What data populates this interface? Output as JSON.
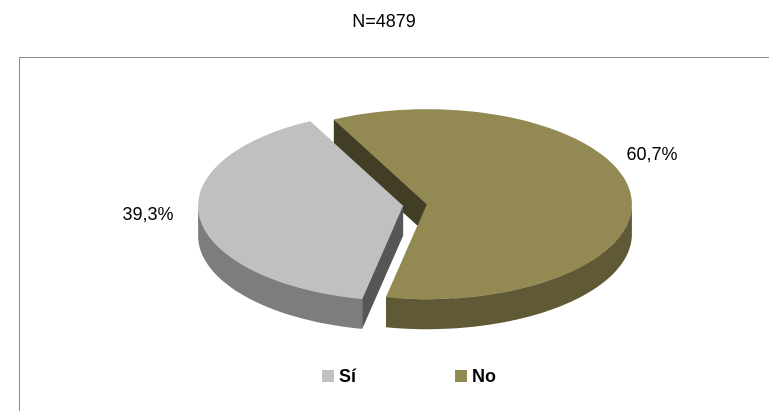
{
  "chart_data": {
    "type": "pie",
    "title": "N=4879",
    "categories": [
      "Sí",
      "No"
    ],
    "values": [
      39.3,
      60.7
    ],
    "value_labels": [
      "39,3%",
      "60,7%"
    ],
    "colors": [
      "#c0c0c0",
      "#938953"
    ],
    "legend": "bottom"
  }
}
